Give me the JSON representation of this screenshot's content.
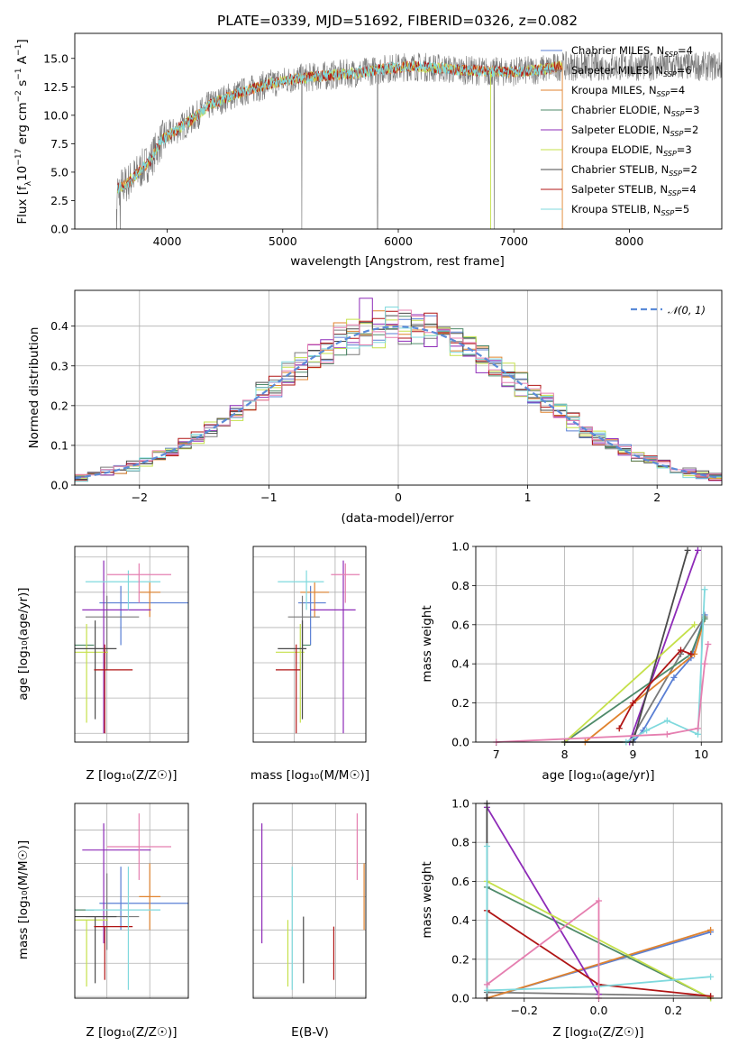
{
  "figure_title": "PLATE=0339, MJD=51692, FIBERID=0326, z=0.082",
  "colors": {
    "Chabrier MILES": "#5a7fd4",
    "Salpeter MILES": "#7a7a7a",
    "Kroupa MILES": "#e0832f",
    "Chabrier ELODIE": "#4f8a6a",
    "Salpeter ELODIE": "#8e2bb8",
    "Kroupa ELODIE": "#c5e04a",
    "Chabrier STELIB": "#4a4a4a",
    "Salpeter STELIB": "#b01515",
    "Kroupa STELIB": "#7fd9dd",
    "pink": "#e57fb0",
    "normal": "#5b8bd8"
  },
  "chart_data": [
    {
      "id": "spectrum",
      "type": "line",
      "title": "PLATE=0339, MJD=51692, FIBERID=0326, z=0.082",
      "xlabel": "wavelength [Angstrom, rest frame]",
      "ylabel": "Flux [f_λ10^-17 erg cm^-2 s^-1 A^-1]",
      "xlim": [
        3200,
        8800
      ],
      "ylim": [
        0,
        17.2
      ],
      "xticks": [
        4000,
        5000,
        6000,
        7000,
        8000
      ],
      "yticks": [
        0.0,
        2.5,
        5.0,
        7.5,
        10.0,
        12.5,
        15.0
      ],
      "grid": false,
      "legend_position": "right",
      "legend": [
        {
          "name": "Chabrier MILES, N",
          "sub": "SSP",
          "val": "=4"
        },
        {
          "name": "Salpeter MILES, N",
          "sub": "SSP",
          "val": "=6"
        },
        {
          "name": "Kroupa MILES, N",
          "sub": "SSP",
          "val": "=4"
        },
        {
          "name": "Chabrier ELODIE, N",
          "sub": "SSP",
          "val": "=3"
        },
        {
          "name": "Salpeter ELODIE, N",
          "sub": "SSP",
          "val": "=2"
        },
        {
          "name": "Kroupa ELODIE, N",
          "sub": "SSP",
          "val": "=3"
        },
        {
          "name": "Chabrier STELIB, N",
          "sub": "SSP",
          "val": "=2"
        },
        {
          "name": "Salpeter STELIB, N",
          "sub": "SSP",
          "val": "=4"
        },
        {
          "name": "Kroupa STELIB, N",
          "sub": "SSP",
          "val": "=5"
        }
      ],
      "continuum": {
        "x": [
          3560,
          3650,
          3750,
          3850,
          3950,
          4050,
          4200,
          4350,
          4500,
          4700,
          4900,
          5100,
          5300,
          5500,
          5700,
          5900,
          6100,
          6300,
          6500,
          6700,
          6900,
          7100,
          7300,
          7400
        ],
        "y": [
          3.5,
          4.0,
          5.0,
          6.0,
          7.8,
          8.5,
          9.5,
          10.8,
          11.5,
          12.2,
          12.8,
          13.2,
          13.4,
          13.6,
          13.8,
          14.1,
          14.3,
          14.2,
          14.0,
          13.9,
          13.8,
          13.9,
          14.1,
          14.3
        ]
      }
    },
    {
      "id": "residuals",
      "type": "bar",
      "xlabel": "(data-model)/error",
      "ylabel": "Normed distribution",
      "xlim": [
        -2.5,
        2.5
      ],
      "ylim": [
        0,
        0.49
      ],
      "xticks": [
        -2,
        -1,
        0,
        1,
        2
      ],
      "yticks": [
        0.0,
        0.1,
        0.2,
        0.3,
        0.4
      ],
      "grid": true,
      "legend_position": "top-right",
      "legend_label": "𝒩(0, 1)",
      "bin_width": 0.1
    },
    {
      "id": "age_vs_Z",
      "type": "scatter",
      "xlabel": "Z [log₁₀(Z/Z☉)]",
      "ylabel": "age  [log₁₀(age/yr)]",
      "xlim": [
        -0.35,
        0.18
      ],
      "ylim": [
        9.575,
        10.13
      ],
      "xticks": [
        -0.2,
        0.0
      ],
      "yticks": [
        9.6,
        9.7,
        9.8,
        9.9,
        10.0,
        10.1
      ],
      "grid": true
    },
    {
      "id": "age_vs_mass",
      "type": "scatter",
      "xlabel": "mass [log₁₀(M/M☉)]",
      "xlim": [
        10.0,
        10.55
      ],
      "ylim": [
        9.575,
        10.13
      ],
      "xticks": [
        10.0,
        10.2,
        10.4
      ],
      "yticks": [
        9.6,
        9.7,
        9.8,
        9.9,
        10.0,
        10.1
      ],
      "grid": true
    },
    {
      "id": "mass_weight_vs_age",
      "type": "line",
      "xlabel": "age  [log₁₀(age/yr)]",
      "ylabel": "mass weight",
      "xlim": [
        6.7,
        10.3
      ],
      "ylim": [
        0,
        1.0
      ],
      "xticks": [
        7,
        8,
        9,
        10
      ],
      "yticks": [
        0.0,
        0.2,
        0.4,
        0.6,
        0.8,
        1.0
      ],
      "grid": true
    },
    {
      "id": "mass_vs_Z",
      "type": "scatter",
      "xlabel": "Z [log₁₀(Z/Z☉)]",
      "ylabel": "mass [log₁₀(M/M☉)]",
      "xlim": [
        -0.35,
        0.18
      ],
      "ylim": [
        9.995,
        10.58
      ],
      "xticks": [
        -0.2,
        0.0
      ],
      "yticks": [
        10.0,
        10.1,
        10.2,
        10.3,
        10.4,
        10.5
      ],
      "grid": true
    },
    {
      "id": "mass_vs_ebv",
      "type": "scatter",
      "xlabel": "E(B-V)",
      "xlim": [
        0.005,
        0.135
      ],
      "ylim": [
        9.995,
        10.58
      ],
      "xticks": [
        0.05,
        0.1
      ],
      "yticks": [
        10.0,
        10.1,
        10.2,
        10.3,
        10.4,
        10.5
      ],
      "grid": true
    },
    {
      "id": "mass_weight_vs_Z",
      "type": "line",
      "xlabel": "Z [log₁₀(Z/Z☉)]",
      "ylabel": "mass weight",
      "xlim": [
        -0.33,
        0.33
      ],
      "ylim": [
        0,
        1.0
      ],
      "xticks": [
        -0.2,
        0.0,
        0.2
      ],
      "yticks": [
        0.0,
        0.2,
        0.4,
        0.6,
        0.8,
        1.0
      ],
      "grid": true
    }
  ],
  "models": [
    {
      "key": "Chabrier MILES",
      "color": "#5a7fd4",
      "Z": [
        -0.3,
        0.3
      ],
      "ZerrL": 0.05,
      "ZerrR": 0.33,
      "age": 9.97,
      "ageErr": 0.12,
      "mass": 10.28,
      "massErr": 0.11,
      "massErrM": 0.08,
      "ebv": null,
      "mw_age": [
        [
          9.0,
          0.0
        ],
        [
          9.15,
          0.06
        ],
        [
          9.6,
          0.33
        ],
        [
          9.85,
          0.43
        ],
        [
          10.05,
          0.65
        ]
      ],
      "mw_Z": [
        [
          -0.3,
          0.0
        ],
        [
          0.3,
          0.34
        ]
      ]
    },
    {
      "key": "Salpeter MILES",
      "color": "#7a7a7a",
      "Z": [
        -0.25,
        0.2
      ],
      "ZerrL": 0.05,
      "ZerrR": 0.1,
      "age": 9.93,
      "ageErr": 0.15,
      "mass": 10.24,
      "massErr": 0.13,
      "massErrM": 0.1,
      "ebv": null,
      "mw_age": [
        [
          8.95,
          0.0
        ],
        [
          9.7,
          0.45
        ],
        [
          10.05,
          0.64
        ]
      ],
      "mw_Z": [
        [
          -0.3,
          0.03
        ],
        [
          0.3,
          0.01
        ]
      ]
    },
    {
      "key": "Kroupa MILES",
      "color": "#e0832f",
      "Z": [
        0.0,
        0.0
      ],
      "ZerrL": 0.0,
      "ZerrR": 0.0,
      "age": 10.0,
      "ageErr": 0.07,
      "mass": 10.3,
      "massErr": 0.1,
      "massErrM": 0.1,
      "ebv": 0.133,
      "mw_age": [
        [
          8.3,
          0.0
        ],
        [
          9.9,
          0.45
        ],
        [
          10.05,
          0.63
        ]
      ],
      "mw_Z": [
        [
          -0.3,
          0.0
        ],
        [
          0.3,
          0.35
        ]
      ]
    },
    {
      "key": "Chabrier ELODIE",
      "color": "#4f8a6a",
      "Z": [
        -0.31,
        0.0
      ],
      "ZerrL": 0.04,
      "ZerrR": 0.0,
      "age": 9.85,
      "ageErr": 0.0,
      "mass": 10.26,
      "massErr": 0.0,
      "massErrM": 0.0,
      "ebv": null,
      "mw_age": [
        [
          8.0,
          0.0
        ],
        [
          9.85,
          0.45
        ],
        [
          10.05,
          0.63
        ]
      ],
      "mw_Z": [
        [
          -0.3,
          0.57
        ],
        [
          0.3,
          0.0
        ]
      ]
    },
    {
      "key": "Salpeter ELODIE",
      "color": "#8e2bb8",
      "Z": [
        -0.3,
        0.15
      ],
      "ZerrL": 0.05,
      "ZerrR": 0.17,
      "age": 9.95,
      "ageErr": 0.35,
      "mass": 10.44,
      "massErr": 0.08,
      "massErrM": 0.28,
      "ebv": 0.015,
      "mw_age": [
        [
          8.95,
          0.0
        ],
        [
          9.95,
          0.98
        ]
      ],
      "mw_Z": [
        [
          -0.3,
          0.98
        ],
        [
          0.0,
          0.02
        ]
      ]
    },
    {
      "key": "Kroupa ELODIE",
      "color": "#c5e04a",
      "Z": [
        -0.32,
        0.05
      ],
      "ZerrL": 0.03,
      "ZerrR": 0.05,
      "age": 9.83,
      "ageErr": 0.2,
      "mass": 10.23,
      "massErr": 0.0,
      "massErrM": 0.2,
      "ebv": 0.045,
      "mw_age": [
        [
          8.0,
          0.0
        ],
        [
          9.9,
          0.6
        ]
      ],
      "mw_Z": [
        [
          -0.3,
          0.6
        ],
        [
          0.3,
          0.0
        ]
      ]
    },
    {
      "key": "Chabrier STELIB",
      "color": "#4a4a4a",
      "Z": [
        -0.28,
        0.0
      ],
      "ZerrL": 0.05,
      "ZerrR": 0.05,
      "age": 9.84,
      "ageErr": 0.2,
      "mass": 10.24,
      "massErr": 0.0,
      "massErrM": 0.2,
      "ebv": 0.063,
      "mw_age": [
        [
          8.0,
          0.0
        ],
        [
          9.0,
          0.0
        ],
        [
          9.8,
          0.98
        ]
      ],
      "mw_Z": [
        [
          -0.3,
          1.0
        ],
        [
          -0.3,
          0.0
        ]
      ]
    },
    {
      "key": "Salpeter STELIB",
      "color": "#b01515",
      "Z": [
        -0.25,
        0.08
      ],
      "ZerrL": 0.0,
      "ZerrR": 0.08,
      "age": 9.78,
      "ageErr": 0.18,
      "mass": 10.21,
      "massErr": 0.0,
      "massErrM": 0.16,
      "ebv": 0.098,
      "mw_age": [
        [
          8.8,
          0.07
        ],
        [
          9.0,
          0.2
        ],
        [
          9.7,
          0.47
        ],
        [
          9.85,
          0.45
        ]
      ],
      "mw_Z": [
        [
          -0.3,
          0.45
        ],
        [
          0.0,
          0.07
        ],
        [
          0.3,
          0.01
        ]
      ]
    },
    {
      "key": "Kroupa STELIB",
      "color": "#7fd9dd",
      "Z": [
        -0.15,
        0.1
      ],
      "ZerrL": 0.15,
      "ZerrR": 0.1,
      "age": 10.03,
      "ageErr": 0.08,
      "mass": 10.26,
      "massErr": 0.13,
      "massErrM": 0.24,
      "ebv": 0.05,
      "mw_age": [
        [
          8.9,
          0.0
        ],
        [
          9.2,
          0.06
        ],
        [
          9.5,
          0.11
        ],
        [
          9.95,
          0.04
        ],
        [
          10.05,
          0.78
        ]
      ],
      "mw_Z": [
        [
          -0.3,
          0.78
        ],
        [
          -0.3,
          0.04
        ],
        [
          0.0,
          0.06
        ],
        [
          0.3,
          0.11
        ]
      ]
    },
    {
      "key": "pink",
      "color": "#e57fb0",
      "Z": [
        -0.1,
        0.05
      ],
      "ZerrL": 0.1,
      "ZerrR": 0.1,
      "age": 10.05,
      "ageErr": 0.08,
      "mass": 10.45,
      "massErr": 0.1,
      "massErrM": 0.1,
      "ebv": 0.125,
      "mw_age": [
        [
          7.0,
          0.0
        ],
        [
          9.5,
          0.04
        ],
        [
          9.95,
          0.07
        ],
        [
          10.05,
          0.4
        ],
        [
          10.1,
          0.5
        ]
      ],
      "mw_Z": [
        [
          -0.3,
          0.07
        ],
        [
          0.0,
          0.5
        ],
        [
          0.0,
          0.0
        ]
      ]
    }
  ]
}
